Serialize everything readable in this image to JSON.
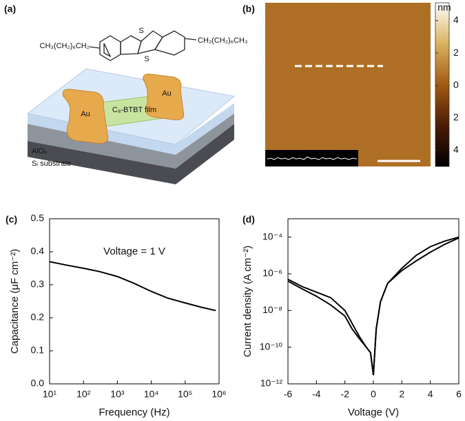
{
  "figure": {
    "panel_a": {
      "label": "(a)",
      "left_chain": "CH₃(CH₂)₆CH₂",
      "right_chain": "CH₂(CH₂)₆CH₃",
      "sulfur_top": "S",
      "sulfur_bottom": "S",
      "electrode_left": "Au",
      "electrode_right": "Au",
      "film": "C₈-BTBT film",
      "dielectric": "AlOₓ",
      "substrate": "Sᵢ substrate"
    },
    "panel_b": {
      "label": "(b)",
      "colorbar": {
        "unit": "nm",
        "lim": [
          -5,
          5.1
        ],
        "ticks": [
          4,
          2,
          0,
          {
            "value": -2,
            "label": "2"
          },
          {
            "value": -4,
            "label": "4"
          }
        ]
      }
    }
  },
  "chart_data": [
    {
      "type": "line",
      "panel_label": "(c)",
      "x_label": "Frequency (Hz)",
      "y_label": "Capacitance (μF cm⁻²)",
      "annotation": "Voltage = 1 V",
      "x_log": true,
      "x": [
        10,
        30,
        100,
        300,
        1000,
        3000,
        10000,
        30000,
        100000,
        300000,
        800000
      ],
      "series": [
        {
          "color": "#000000",
          "values": [
            0.37,
            0.36,
            0.35,
            0.34,
            0.325,
            0.305,
            0.28,
            0.26,
            0.245,
            0.232,
            0.222
          ]
        }
      ],
      "xlim": [
        10,
        1000000
      ],
      "ylim": [
        0,
        0.5
      ],
      "xticks": [
        {
          "value": 10,
          "label": "10¹"
        },
        {
          "value": 100,
          "label": "10²"
        },
        {
          "value": 1000,
          "label": "10³"
        },
        {
          "value": 10000,
          "label": "10⁴"
        },
        {
          "value": 100000,
          "label": "10⁵"
        },
        {
          "value": 1000000,
          "label": "10⁶"
        }
      ],
      "yticks": [
        {
          "value": 0,
          "label": "0.0"
        },
        0.1,
        0.2,
        0.3,
        0.4,
        0.5
      ]
    },
    {
      "type": "line",
      "panel_label": "(d)",
      "x_label": "Voltage (V)",
      "y_label": "Current density (A cm⁻²)",
      "y_log": true,
      "x": [
        -6,
        -5,
        -4,
        -3,
        -2,
        -1.5,
        -1,
        -0.5,
        -0.2,
        0,
        0.2,
        0.5,
        1,
        2,
        3,
        4,
        5,
        6
      ],
      "series": [
        {
          "color": "#000000",
          "values": [
            4e-07,
            1.5e-07,
            6e-08,
            2e-08,
            5e-09,
            1e-09,
            3e-10,
            1e-10,
            5e-11,
            3e-12,
            1e-09,
            3e-08,
            3e-07,
            1.5e-06,
            5e-06,
            1.5e-05,
            4e-05,
            9e-05
          ]
        },
        {
          "color": "#000000",
          "values": [
            5e-07,
            2e-07,
            1e-07,
            5e-08,
            1e-08,
            2e-09,
            4e-10,
            1e-10,
            5e-11,
            3e-12,
            1e-09,
            3e-08,
            3e-07,
            2e-06,
            1e-05,
            3e-05,
            6e-05,
            0.0001
          ]
        }
      ],
      "xlim": [
        -6,
        6
      ],
      "ylim": [
        1e-12,
        0.001
      ],
      "xticks": [
        -6,
        -4,
        -2,
        0,
        2,
        4,
        6
      ],
      "yticks": [
        {
          "value": 1e-12,
          "label": "10⁻¹²"
        },
        {
          "value": 1e-10,
          "label": "10⁻¹⁰"
        },
        {
          "value": 1e-08,
          "label": "10⁻⁸"
        },
        {
          "value": 1e-06,
          "label": "10⁻⁶"
        },
        {
          "value": 0.0001,
          "label": "10⁻⁴"
        }
      ]
    }
  ]
}
